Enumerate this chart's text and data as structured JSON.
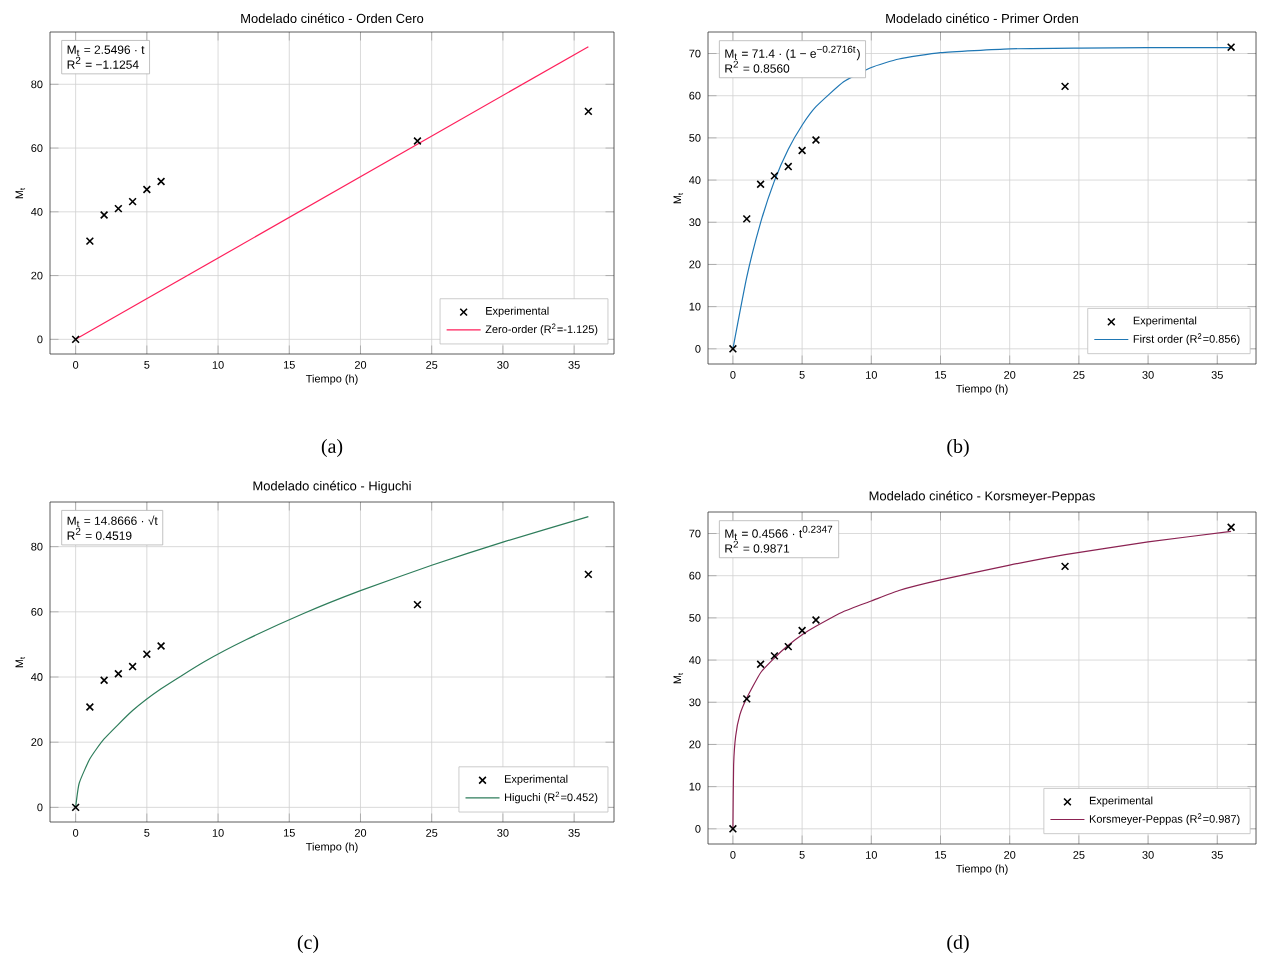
{
  "chart_data": [
    {
      "type": "scatter",
      "title": "Modelado cinético - Orden Cero",
      "xlabel": "Tiempo (h)",
      "ylabel": "M$_{t}$",
      "xlim": [
        -1.8,
        37.8
      ],
      "ylim": [
        -4.6,
        96.4
      ],
      "xticks": [
        0,
        5,
        10,
        15,
        20,
        25,
        30,
        35
      ],
      "yticks": [
        0,
        20,
        40,
        60,
        80
      ],
      "grid": true,
      "legend": "bottom right",
      "annotations": [
        "M$_{t}$ = 2.5496 · t",
        "R$^{2}$ = −1.1254",
        "(a)"
      ],
      "series": [
        {
          "name": "Experimental",
          "type": "scatter",
          "marker": "cross",
          "color": "#000000",
          "x": [
            0,
            1,
            2,
            3,
            4,
            5,
            6,
            24,
            36
          ],
          "values": [
            0,
            30.8,
            39,
            41,
            43.2,
            47,
            49.5,
            62.2,
            71.5
          ]
        },
        {
          "name": "Zero-order (R$^{2}$=-1.125)",
          "type": "line",
          "marker": "none",
          "color": "#ff1f5b",
          "x": [
            0,
            36
          ],
          "values": [
            0,
            91.8
          ]
        }
      ]
    },
    {
      "type": "scatter",
      "title": "Modelado cinético - Primer Orden",
      "xlabel": "Tiempo (h)",
      "ylabel": "M$_{t}$",
      "xlim": [
        -1.8,
        37.8
      ],
      "ylim": [
        -3.6,
        75.1
      ],
      "xticks": [
        0,
        5,
        10,
        15,
        20,
        25,
        30,
        35
      ],
      "yticks": [
        0,
        10,
        20,
        30,
        40,
        50,
        60,
        70
      ],
      "grid": true,
      "legend": "bottom right",
      "annotations": [
        "M$_{t}$ = 71.4 · (1 − e$^{−0.2716t}$)",
        "R$^{2}$ = 0.8560",
        "(b)"
      ],
      "series": [
        {
          "name": "Experimental",
          "type": "scatter",
          "marker": "cross",
          "color": "#000000",
          "x": [
            0,
            1,
            2,
            3,
            4,
            5,
            6,
            24,
            36
          ],
          "values": [
            0,
            30.8,
            39,
            41,
            43.2,
            47,
            49.5,
            62.2,
            71.5
          ]
        },
        {
          "name": "First order (R$^{2}$=0.856)",
          "type": "line",
          "marker": "none",
          "color": "#1f77b4",
          "x": [
            0,
            1,
            2,
            3,
            4,
            5,
            6,
            8,
            10,
            12,
            15,
            20,
            25,
            30,
            36
          ],
          "values": [
            0,
            17.0,
            29.9,
            39.8,
            47.3,
            53.0,
            57.4,
            63.3,
            66.7,
            68.7,
            70.2,
            71.1,
            71.3,
            71.4,
            71.4
          ]
        }
      ]
    },
    {
      "type": "scatter",
      "title": "Modelado cinético - Higuchi",
      "xlabel": "Tiempo (h)",
      "ylabel": "M$_{t}$",
      "xlim": [
        -1.8,
        37.8
      ],
      "ylim": [
        -4.5,
        93.7
      ],
      "xticks": [
        0,
        5,
        10,
        15,
        20,
        25,
        30,
        35
      ],
      "yticks": [
        0,
        20,
        40,
        60,
        80
      ],
      "grid": true,
      "legend": "bottom right",
      "annotations": [
        "M$_{t}$ = 14.8666 · √t",
        "R$^{2}$ = 0.4519",
        "(c)"
      ],
      "series": [
        {
          "name": "Experimental",
          "type": "scatter",
          "marker": "cross",
          "color": "#000000",
          "x": [
            0,
            1,
            2,
            3,
            4,
            5,
            6,
            24,
            36
          ],
          "values": [
            0,
            30.8,
            39,
            41,
            43.2,
            47,
            49.5,
            62.2,
            71.5
          ]
        },
        {
          "name": "Higuchi (R$^{2}$=0.452)",
          "type": "line",
          "marker": "none",
          "color": "#2e7d5b",
          "x": [
            0,
            0.25,
            1,
            2,
            4,
            6,
            9,
            12,
            16,
            20,
            25,
            30,
            36
          ],
          "values": [
            0,
            7.4,
            14.9,
            21,
            29.7,
            36.4,
            44.6,
            51.5,
            59.5,
            66.5,
            74.3,
            81.4,
            89.2
          ]
        }
      ]
    },
    {
      "type": "scatter",
      "title": "Modelado cinético - Korsmeyer-Peppas",
      "xlabel": "Tiempo (h)",
      "ylabel": "M$_{t}$",
      "xlim": [
        -1.8,
        37.8
      ],
      "ylim": [
        -3.6,
        75.1
      ],
      "xticks": [
        0,
        5,
        10,
        15,
        20,
        25,
        30,
        35
      ],
      "yticks": [
        0,
        10,
        20,
        30,
        40,
        50,
        60,
        70
      ],
      "grid": true,
      "legend": "bottom right",
      "annotations": [
        "M$_{t}$ = 0.4566 · t$^{0.2347}$",
        "R$^{2}$ = 0.9871",
        "(d)"
      ],
      "series": [
        {
          "name": "Experimental",
          "type": "scatter",
          "marker": "cross",
          "color": "#000000",
          "x": [
            0,
            1,
            2,
            3,
            4,
            5,
            6,
            24,
            36
          ],
          "values": [
            0,
            30.8,
            39,
            41,
            43.2,
            47,
            49.5,
            62.2,
            71.5
          ]
        },
        {
          "name": "Korsmeyer-Peppas (R$^{2}$=0.987)",
          "type": "line",
          "marker": "none",
          "color": "#8b2252",
          "x": [
            0,
            0.05,
            0.2,
            0.5,
            1,
            2,
            3,
            4,
            5,
            6,
            8,
            10,
            12,
            15,
            20,
            24,
            30,
            36
          ],
          "values": [
            0,
            15,
            22,
            27,
            31,
            37,
            40.5,
            43.5,
            46,
            48,
            51.5,
            54,
            56.5,
            59,
            62.5,
            65,
            68,
            70.5
          ]
        }
      ]
    }
  ]
}
